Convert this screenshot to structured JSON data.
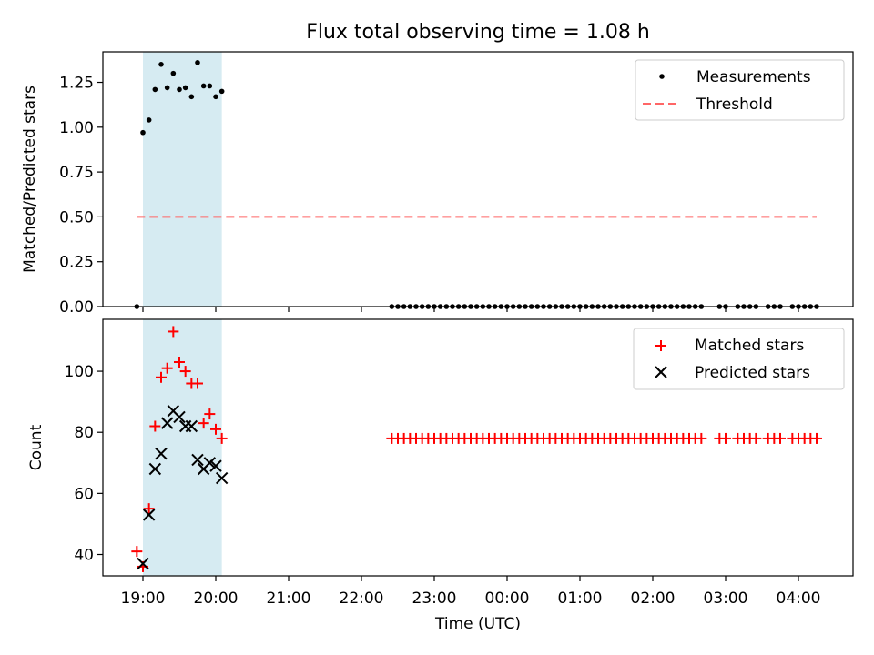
{
  "title": "Flux total observing time = 1.08 h",
  "colors": {
    "shade": "#add8e6",
    "threshold": "#ff6666",
    "matched": "#ff0000",
    "predicted": "#000000",
    "measurement": "#000000"
  },
  "chart_data": [
    {
      "type": "scatter",
      "panel": "top",
      "title": "Flux total observing time = 1.08 h",
      "xlabel": "",
      "ylabel": "Matched/Predicted stars",
      "xlim": [
        "18:27",
        "04:45"
      ],
      "ylim": [
        0,
        1.42
      ],
      "yticks": [
        "0.00",
        "0.25",
        "0.50",
        "0.75",
        "1.00",
        "1.25"
      ],
      "grid": false,
      "legend_position": "top-right",
      "shaded_interval": [
        "19:00",
        "20:05"
      ],
      "threshold": {
        "name": "Threshold",
        "value": 0.5,
        "x_range": [
          "18:55",
          "04:15"
        ]
      },
      "series": [
        {
          "name": "Measurements",
          "x": [
            "18:55",
            "19:00",
            "19:05",
            "19:10",
            "19:15",
            "19:20",
            "19:25",
            "19:30",
            "19:35",
            "19:40",
            "19:45",
            "19:50",
            "19:55",
            "20:00",
            "20:05",
            "22:25",
            "22:30",
            "22:35",
            "22:40",
            "22:45",
            "22:50",
            "22:55",
            "23:00",
            "23:05",
            "23:10",
            "23:15",
            "23:20",
            "23:25",
            "23:30",
            "23:35",
            "23:40",
            "23:45",
            "23:50",
            "23:55",
            "00:00",
            "00:05",
            "00:10",
            "00:15",
            "00:20",
            "00:25",
            "00:30",
            "00:35",
            "00:40",
            "00:45",
            "00:50",
            "00:55",
            "01:00",
            "01:05",
            "01:10",
            "01:15",
            "01:20",
            "01:25",
            "01:30",
            "01:35",
            "01:40",
            "01:45",
            "01:50",
            "01:55",
            "02:00",
            "02:05",
            "02:10",
            "02:15",
            "02:20",
            "02:25",
            "02:30",
            "02:35",
            "02:40",
            "02:55",
            "03:00",
            "03:10",
            "03:15",
            "03:20",
            "03:25",
            "03:35",
            "03:40",
            "03:45",
            "03:55",
            "04:00",
            "04:05",
            "04:10",
            "04:15"
          ],
          "y": [
            0.0,
            0.97,
            1.04,
            1.21,
            1.35,
            1.22,
            1.3,
            1.21,
            1.22,
            1.17,
            1.36,
            1.23,
            1.23,
            1.17,
            1.2,
            0,
            0,
            0,
            0,
            0,
            0,
            0,
            0,
            0,
            0,
            0,
            0,
            0,
            0,
            0,
            0,
            0,
            0,
            0,
            0,
            0,
            0,
            0,
            0,
            0,
            0,
            0,
            0,
            0,
            0,
            0,
            0,
            0,
            0,
            0,
            0,
            0,
            0,
            0,
            0,
            0,
            0,
            0,
            0,
            0,
            0,
            0,
            0,
            0,
            0,
            0,
            0,
            0,
            0,
            0,
            0,
            0,
            0,
            0,
            0,
            0,
            0,
            0,
            0,
            0,
            0
          ]
        }
      ]
    },
    {
      "type": "scatter",
      "panel": "bottom",
      "xlabel": "Time (UTC)",
      "ylabel": "Count",
      "xlim": [
        "18:27",
        "04:45"
      ],
      "ylim": [
        33,
        117
      ],
      "xticks": [
        "19:00",
        "20:00",
        "21:00",
        "22:00",
        "23:00",
        "00:00",
        "01:00",
        "02:00",
        "03:00",
        "04:00"
      ],
      "yticks": [
        "40",
        "60",
        "80",
        "100"
      ],
      "grid": false,
      "legend_position": "top-right",
      "shaded_interval": [
        "19:00",
        "20:05"
      ],
      "series": [
        {
          "name": "Matched stars",
          "marker": "+",
          "x": [
            "18:55",
            "19:00",
            "19:05",
            "19:10",
            "19:15",
            "19:20",
            "19:25",
            "19:30",
            "19:35",
            "19:40",
            "19:45",
            "19:50",
            "19:55",
            "20:00",
            "20:05",
            "22:25",
            "22:30",
            "22:35",
            "22:40",
            "22:45",
            "22:50",
            "22:55",
            "23:00",
            "23:05",
            "23:10",
            "23:15",
            "23:20",
            "23:25",
            "23:30",
            "23:35",
            "23:40",
            "23:45",
            "23:50",
            "23:55",
            "00:00",
            "00:05",
            "00:10",
            "00:15",
            "00:20",
            "00:25",
            "00:30",
            "00:35",
            "00:40",
            "00:45",
            "00:50",
            "00:55",
            "01:00",
            "01:05",
            "01:10",
            "01:15",
            "01:20",
            "01:25",
            "01:30",
            "01:35",
            "01:40",
            "01:45",
            "01:50",
            "01:55",
            "02:00",
            "02:05",
            "02:10",
            "02:15",
            "02:20",
            "02:25",
            "02:30",
            "02:35",
            "02:40",
            "02:55",
            "03:00",
            "03:10",
            "03:15",
            "03:20",
            "03:25",
            "03:35",
            "03:40",
            "03:45",
            "03:55",
            "04:00",
            "04:05",
            "04:10",
            "04:15"
          ],
          "y": [
            41,
            36,
            55,
            82,
            98,
            101,
            113,
            103,
            100,
            96,
            96,
            83,
            86,
            81,
            78,
            78,
            78,
            78,
            78,
            78,
            78,
            78,
            78,
            78,
            78,
            78,
            78,
            78,
            78,
            78,
            78,
            78,
            78,
            78,
            78,
            78,
            78,
            78,
            78,
            78,
            78,
            78,
            78,
            78,
            78,
            78,
            78,
            78,
            78,
            78,
            78,
            78,
            78,
            78,
            78,
            78,
            78,
            78,
            78,
            78,
            78,
            78,
            78,
            78,
            78,
            78,
            78,
            78,
            78,
            78,
            78,
            78,
            78,
            78,
            78,
            78,
            78,
            78,
            78,
            78,
            78
          ]
        },
        {
          "name": "Predicted stars",
          "marker": "x",
          "x": [
            "19:00",
            "19:05",
            "19:10",
            "19:15",
            "19:20",
            "19:25",
            "19:30",
            "19:35",
            "19:40",
            "19:45",
            "19:50",
            "19:55",
            "20:00",
            "20:05"
          ],
          "y": [
            37,
            53,
            68,
            73,
            83,
            87,
            85,
            82,
            82,
            71,
            68,
            70,
            69,
            65
          ]
        }
      ]
    }
  ]
}
